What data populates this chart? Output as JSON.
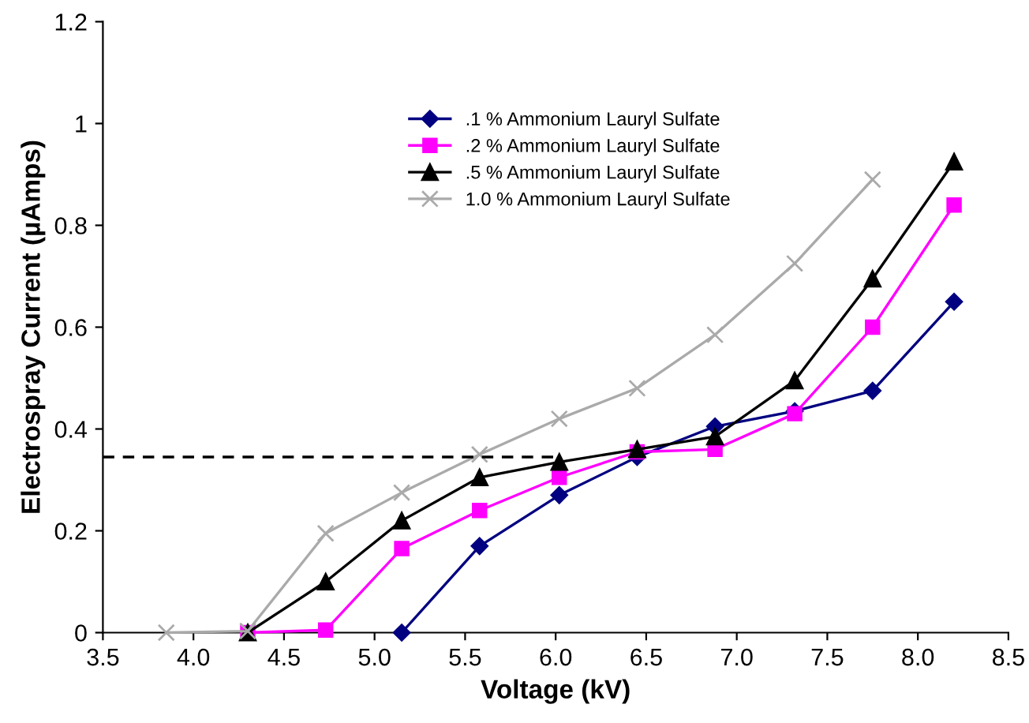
{
  "chart_data": {
    "type": "line",
    "xlabel": "Voltage (kV)",
    "ylabel": "Electrospray Current (µAmps)",
    "xlim": [
      3.5,
      8.5
    ],
    "xticks": [
      {
        "value": 3.5,
        "label": "3.5"
      },
      {
        "value": 4.0,
        "label": "4.0"
      },
      {
        "value": 4.5,
        "label": "4.5"
      },
      {
        "value": 5.0,
        "label": "5.0"
      },
      {
        "value": 5.5,
        "label": "5.5"
      },
      {
        "value": 6.0,
        "label": "6.0"
      },
      {
        "value": 6.5,
        "label": "6.5"
      },
      {
        "value": 7.0,
        "label": "7.0"
      },
      {
        "value": 7.5,
        "label": "7.5"
      },
      {
        "value": 8.0,
        "label": "8.0"
      },
      {
        "value": 8.5,
        "label": "8.5"
      }
    ],
    "ylim": [
      0,
      1.2
    ],
    "yticks": [
      0,
      0.2,
      0.4,
      0.6,
      0.8,
      1,
      1.2
    ],
    "grid": false,
    "legend": "top",
    "series": [
      {
        "name": ".1 % Ammonium Lauryl Sulfate",
        "color": "#000080",
        "marker": "diamond",
        "x": [
          5.15,
          5.58,
          6.02,
          6.45,
          6.88,
          7.32,
          7.75,
          8.2
        ],
        "values": [
          0,
          0.17,
          0.27,
          0.345,
          0.405,
          0.435,
          0.475,
          0.65
        ]
      },
      {
        "name": ".2 % Ammonium Lauryl Sulfate",
        "color": "#ff00ff",
        "marker": "square",
        "x": [
          4.3,
          4.73,
          5.15,
          5.58,
          6.02,
          6.45,
          6.88,
          7.32,
          7.75,
          8.2
        ],
        "values": [
          0,
          0.005,
          0.165,
          0.24,
          0.305,
          0.355,
          0.36,
          0.43,
          0.6,
          0.84
        ]
      },
      {
        "name": ".5 % Ammonium Lauryl Sulfate",
        "color": "#000000",
        "marker": "triangle",
        "x": [
          4.3,
          4.73,
          5.15,
          5.58,
          6.02,
          6.45,
          6.88,
          7.32,
          7.75,
          8.2
        ],
        "values": [
          0,
          0.1,
          0.22,
          0.305,
          0.335,
          0.36,
          0.385,
          0.495,
          0.695,
          0.925
        ]
      },
      {
        "name": "1.0 % Ammonium Lauryl Sulfate",
        "color": "#aaaaaa",
        "marker": "cross",
        "x": [
          3.85,
          4.3,
          4.73,
          5.15,
          5.58,
          6.02,
          6.45,
          6.88,
          7.32,
          7.75
        ],
        "values": [
          0,
          0.003,
          0.195,
          0.275,
          0.35,
          0.42,
          0.48,
          0.585,
          0.725,
          0.89
        ]
      },
      {
        "color": "#000000",
        "marker": "none",
        "line_style": "dashed",
        "x": [
          3.5,
          6.0
        ],
        "values": [
          0.345,
          0.345
        ]
      }
    ]
  }
}
